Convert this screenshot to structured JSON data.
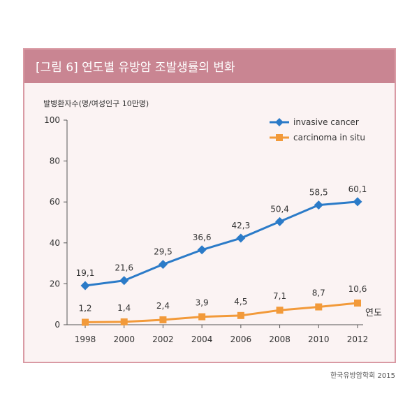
{
  "figure": {
    "title": "[그림 6] 연도별 유방암 조발생률의 변화",
    "source": "한국유방암학회 2015"
  },
  "chart_data": {
    "type": "line",
    "title": "[그림 6] 연도별 유방암 조발생률의 변화",
    "ylabel": "발병환자수(명/여성인구 10만명)",
    "xlabel": "연도",
    "x": [
      "1998",
      "2000",
      "2002",
      "2004",
      "2006",
      "2008",
      "2010",
      "2012"
    ],
    "ylim": [
      0,
      100
    ],
    "yticks": [
      0,
      20,
      40,
      60,
      80,
      100
    ],
    "legend_position": "top-right",
    "grid": false,
    "series": [
      {
        "name": "invasive cancer",
        "color": "#2b7bc8",
        "marker": "diamond",
        "values": [
          19.1,
          21.6,
          29.5,
          36.6,
          42.3,
          50.4,
          58.5,
          60.1
        ],
        "labels": [
          "19,1",
          "21,6",
          "29,5",
          "36,6",
          "42,3",
          "50,4",
          "58,5",
          "60,1"
        ]
      },
      {
        "name": "carcinoma in situ",
        "color": "#f29a3a",
        "marker": "square",
        "values": [
          1.2,
          1.4,
          2.4,
          3.9,
          4.5,
          7.1,
          8.7,
          10.6
        ],
        "labels": [
          "1,2",
          "1,4",
          "2,4",
          "3,9",
          "4,5",
          "7,1",
          "8,7",
          "10,6"
        ]
      }
    ]
  }
}
